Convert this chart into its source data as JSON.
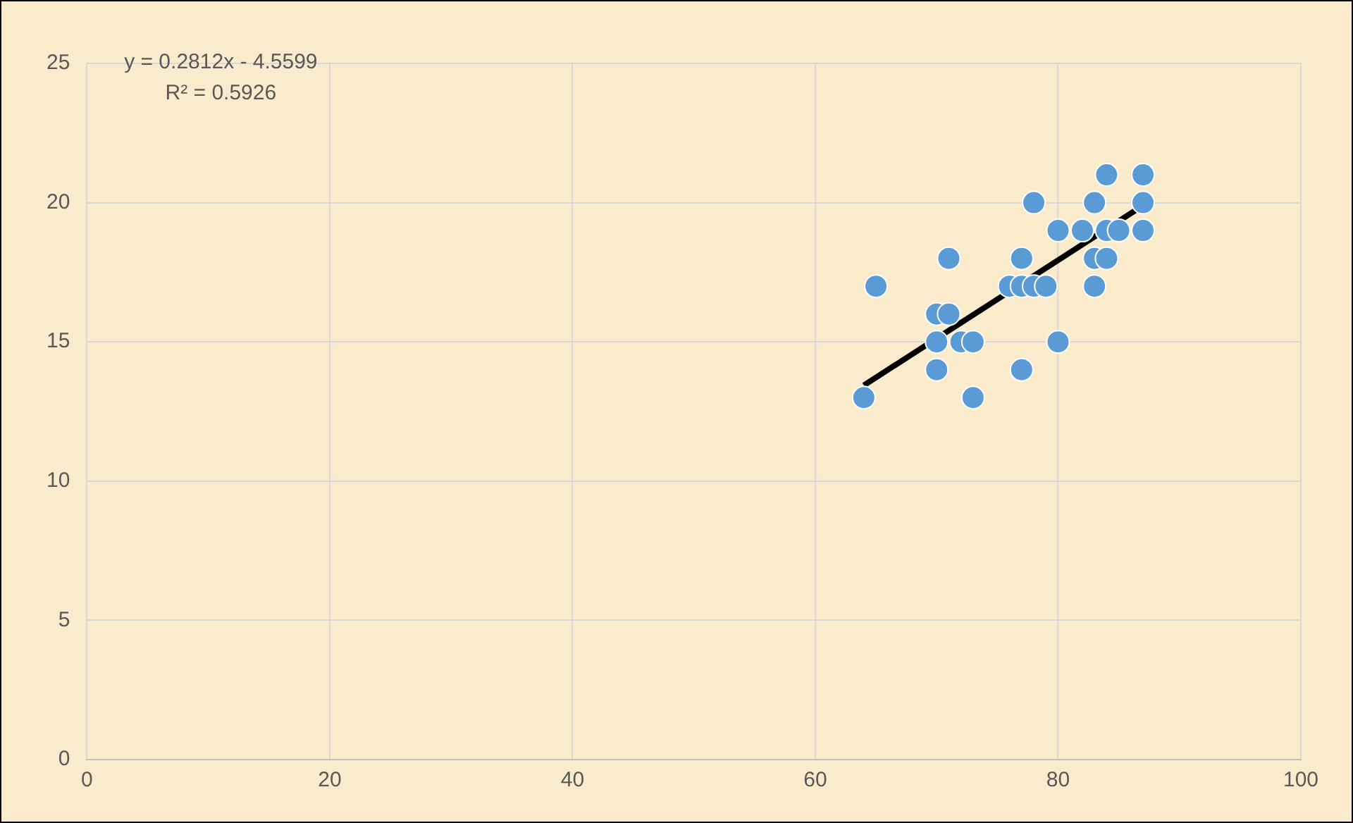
{
  "chart_data": {
    "type": "scatter",
    "xlim": [
      0,
      100
    ],
    "xticks": [
      0,
      20,
      40,
      60,
      80,
      100
    ],
    "ylim": [
      0,
      25
    ],
    "yticks": [
      0,
      5,
      10,
      15,
      20,
      25
    ],
    "grid": true,
    "legend": false,
    "marker": "circle",
    "annotations": [
      "y = 0.2812x - 4.5599",
      "R² = 0.5926"
    ],
    "series": [
      {
        "color": "#5b9bd5",
        "x": [
          64,
          65,
          70,
          71,
          70,
          70,
          71,
          72,
          73,
          73,
          76,
          77,
          77,
          77,
          78,
          78,
          79,
          80,
          80,
          82,
          83,
          83,
          83,
          84,
          84,
          84,
          85,
          87,
          87,
          87
        ],
        "values": [
          13,
          17,
          16,
          16,
          15,
          14,
          18,
          15,
          15,
          13,
          17,
          17,
          18,
          14,
          20,
          17,
          17,
          19,
          15,
          19,
          20,
          18,
          17,
          21,
          19,
          18,
          19,
          21,
          20,
          19
        ]
      },
      {
        "type": "line",
        "color": "#000000",
        "marker": "none",
        "x": [
          64,
          87
        ],
        "values": [
          13.44,
          19.9
        ]
      }
    ]
  }
}
